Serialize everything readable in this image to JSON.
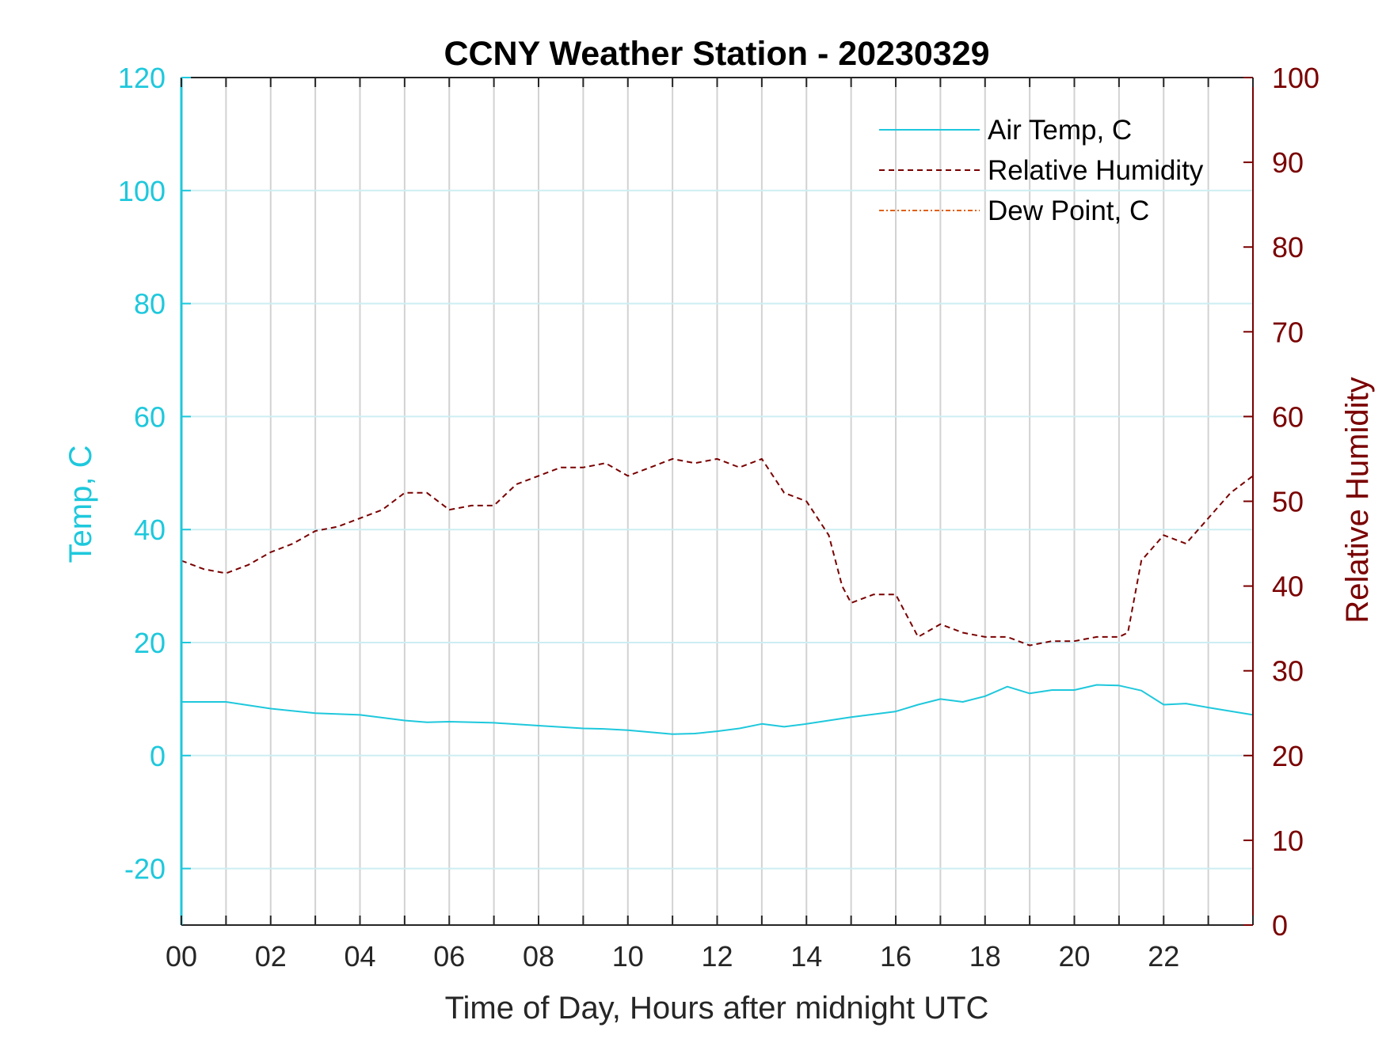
{
  "chart_data": {
    "type": "line",
    "title": "CCNY Weather Station - 20230329",
    "xlabel": "Time of Day, Hours after midnight UTC",
    "ylabel_left": "Temp, C",
    "ylabel_right": "Relative Humidity",
    "xlim": [
      0,
      24
    ],
    "ylim_left": [
      -30,
      120
    ],
    "ylim_right": [
      0,
      100
    ],
    "x_ticks": [
      0,
      2,
      4,
      6,
      8,
      10,
      12,
      14,
      16,
      18,
      20,
      22
    ],
    "x_tick_labels": [
      "00",
      "02",
      "04",
      "06",
      "08",
      "10",
      "12",
      "14",
      "16",
      "18",
      "20",
      "22"
    ],
    "y_left_ticks": [
      -20,
      0,
      20,
      40,
      60,
      80,
      100,
      120
    ],
    "y_left_tick_labels": [
      "-20",
      "0",
      "20",
      "40",
      "60",
      "80",
      "100",
      "120"
    ],
    "y_right_ticks": [
      0,
      10,
      20,
      30,
      40,
      50,
      60,
      70,
      80,
      90,
      100
    ],
    "y_right_tick_labels": [
      "0",
      "10",
      "20",
      "30",
      "40",
      "50",
      "60",
      "70",
      "80",
      "90",
      "100"
    ],
    "grid": "vertical every hour, horizontal at left-axis ticks",
    "legend_position": "top-right",
    "series": [
      {
        "name": "Air Temp, C",
        "axis": "left",
        "style": "solid",
        "color": "#1ec8dc",
        "x": [
          0,
          1,
          2,
          3,
          4,
          5,
          5.5,
          6,
          7,
          8,
          9,
          9.5,
          10,
          11,
          11.5,
          12,
          12.5,
          13,
          13.5,
          14,
          15,
          16,
          16.5,
          17,
          17.5,
          18,
          18.5,
          19,
          19.5,
          20,
          20.5,
          21,
          21.5,
          22,
          22.5,
          23,
          24
        ],
        "y": [
          9.5,
          9.5,
          8.3,
          7.5,
          7.2,
          6.2,
          5.9,
          6.0,
          5.8,
          5.3,
          4.8,
          4.7,
          4.5,
          3.8,
          3.9,
          4.3,
          4.8,
          5.6,
          5.1,
          5.6,
          6.8,
          7.8,
          9.0,
          10.0,
          9.5,
          10.5,
          12.2,
          11.0,
          11.6,
          11.6,
          12.5,
          12.4,
          11.5,
          9.0,
          9.2,
          8.5,
          7.2
        ]
      },
      {
        "name": "Relative Humidity",
        "axis": "right",
        "style": "dashed",
        "color": "#7a0000",
        "x": [
          0,
          0.5,
          1,
          1.5,
          2,
          2.5,
          3,
          3.5,
          4,
          4.5,
          5,
          5.5,
          6,
          6.5,
          7,
          7.5,
          8,
          8.5,
          9,
          9.5,
          10,
          10.5,
          11,
          11.5,
          12,
          12.5,
          13,
          13.5,
          14,
          14.5,
          14.8,
          15,
          15.5,
          16,
          16.3,
          16.5,
          17,
          17.5,
          18,
          18.5,
          19,
          19.5,
          20,
          20.5,
          21,
          21.2,
          21.5,
          22,
          22.5,
          23,
          23.5,
          24
        ],
        "y": [
          43,
          42,
          41.5,
          42.5,
          44,
          45,
          46.5,
          47,
          48,
          49,
          51,
          51,
          49,
          49.5,
          49.5,
          52,
          53,
          54,
          54,
          54.5,
          53,
          54,
          55,
          54.5,
          55,
          54,
          55,
          51,
          50,
          46,
          40,
          38,
          39,
          39,
          36,
          34,
          35.5,
          34.5,
          34,
          34,
          33,
          33.5,
          33.5,
          34,
          34,
          34.5,
          43,
          46,
          45,
          48,
          51,
          53
        ]
      },
      {
        "name": "Dew Point, C",
        "axis": "left",
        "style": "dash-dot",
        "color": "#e06010",
        "x": [],
        "y": []
      }
    ]
  }
}
